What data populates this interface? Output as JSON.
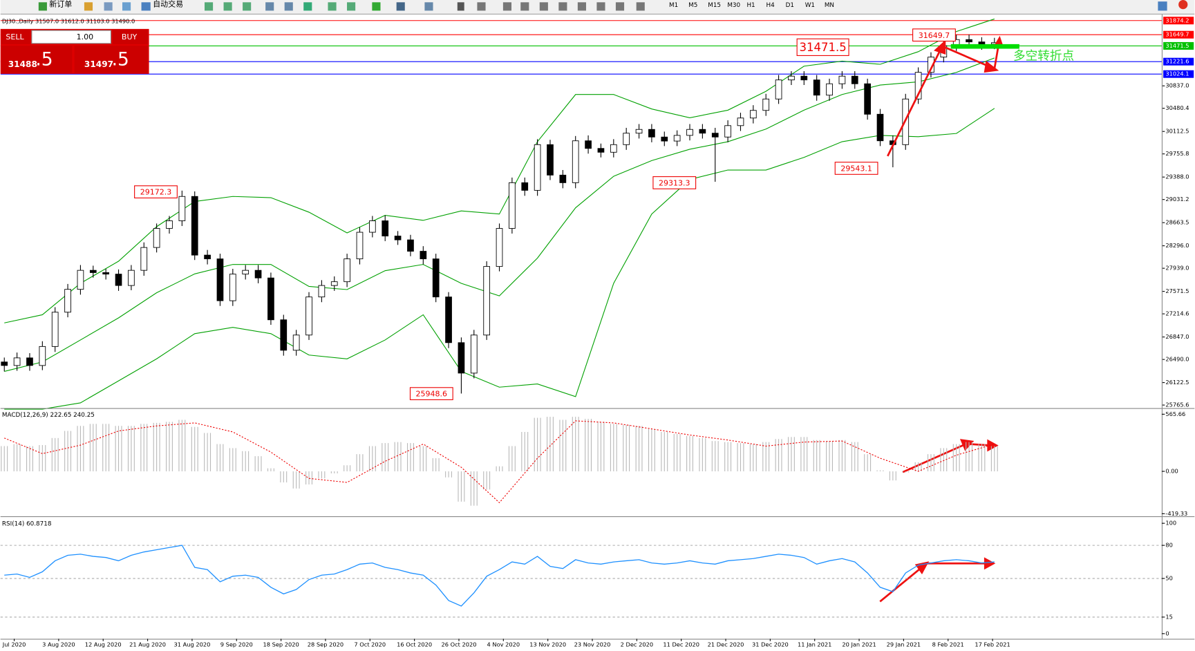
{
  "toolbar": {
    "new_order": "新订单",
    "auto_trading": "自动交易",
    "timeframes": [
      "M1",
      "M5",
      "M15",
      "M30",
      "H1",
      "H4",
      "D1",
      "W1",
      "MN"
    ]
  },
  "trade_panel": {
    "sell": "SELL",
    "buy": "BUY",
    "lots": "1.00",
    "sell_big": "31488",
    "sell_small": ".5",
    "buy_big": "31497",
    "buy_small": ".5"
  },
  "chart_data": {
    "type": "candlestick",
    "header": "DJ30.,Daily  31507.0 31612.0 31103.0 31490.0",
    "ohlc": [
      [
        26450,
        26520,
        26300,
        26394
      ],
      [
        26394,
        26600,
        26310,
        26515
      ],
      [
        26515,
        26590,
        26310,
        26394
      ],
      [
        26394,
        26780,
        26320,
        26696
      ],
      [
        26696,
        27320,
        26610,
        27241
      ],
      [
        27241,
        27690,
        27160,
        27604
      ],
      [
        27604,
        27990,
        27520,
        27906
      ],
      [
        27906,
        27980,
        27790,
        27870
      ],
      [
        27870,
        27930,
        27760,
        27846
      ],
      [
        27846,
        27920,
        27580,
        27665
      ],
      [
        27665,
        27990,
        27590,
        27906
      ],
      [
        27906,
        28350,
        27820,
        28269
      ],
      [
        28269,
        28650,
        28190,
        28572
      ],
      [
        28572,
        28770,
        28490,
        28693
      ],
      [
        28693,
        29172.3,
        28610,
        29080
      ],
      [
        29080,
        29160,
        28070,
        28148
      ],
      [
        28148,
        28230,
        28000,
        28088
      ],
      [
        28088,
        28170,
        27340,
        27423
      ],
      [
        27423,
        27930,
        27340,
        27846
      ],
      [
        27846,
        27990,
        27760,
        27906
      ],
      [
        27906,
        27990,
        27700,
        27785
      ],
      [
        27785,
        27870,
        27040,
        27120
      ],
      [
        27120,
        27200,
        26550,
        26636
      ],
      [
        26636,
        26960,
        26550,
        26878
      ],
      [
        26878,
        27560,
        26800,
        27483
      ],
      [
        27483,
        27750,
        27400,
        27665
      ],
      [
        27665,
        27810,
        27580,
        27725
      ],
      [
        27725,
        28170,
        27640,
        28088
      ],
      [
        28088,
        28590,
        28000,
        28511
      ],
      [
        28511,
        28770,
        28430,
        28693
      ],
      [
        28693,
        28780,
        28370,
        28451
      ],
      [
        28451,
        28530,
        28310,
        28390
      ],
      [
        28390,
        28470,
        28130,
        28209
      ],
      [
        28209,
        28290,
        28000,
        28088
      ],
      [
        28088,
        28170,
        27400,
        27483
      ],
      [
        27483,
        27560,
        26670,
        26757
      ],
      [
        26757,
        26840,
        25948.6,
        26273
      ],
      [
        26273,
        26960,
        26190,
        26878
      ],
      [
        26878,
        28050,
        26800,
        27967
      ],
      [
        27967,
        28650,
        27890,
        28572
      ],
      [
        28572,
        29380,
        28490,
        29298
      ],
      [
        29298,
        29380,
        29090,
        29177
      ],
      [
        29177,
        29990,
        29090,
        29903
      ],
      [
        29903,
        29980,
        29340,
        29419
      ],
      [
        29419,
        29500,
        29210,
        29298
      ],
      [
        29298,
        30040,
        29210,
        29964
      ],
      [
        29964,
        30050,
        29760,
        29843
      ],
      [
        29843,
        29920,
        29700,
        29782
      ],
      [
        29782,
        29990,
        29700,
        29903
      ],
      [
        29903,
        30170,
        29820,
        30085
      ],
      [
        30085,
        30230,
        30000,
        30145
      ],
      [
        30145,
        30230,
        29940,
        30024
      ],
      [
        30024,
        30110,
        29880,
        29960
      ],
      [
        29960,
        30130,
        29880,
        30050
      ],
      [
        30050,
        30230,
        29970,
        30145
      ],
      [
        30145,
        30230,
        30000,
        30085
      ],
      [
        30085,
        30170,
        29313.3,
        30024
      ],
      [
        30024,
        30290,
        29940,
        30205
      ],
      [
        30205,
        30410,
        30120,
        30326
      ],
      [
        30326,
        30530,
        30240,
        30447
      ],
      [
        30447,
        30710,
        30360,
        30628
      ],
      [
        30628,
        31010,
        30550,
        30931
      ],
      [
        30931,
        31070,
        30850,
        30991
      ],
      [
        30991,
        31070,
        30850,
        30931
      ],
      [
        30931,
        31010,
        30600,
        30689
      ],
      [
        30689,
        30950,
        30600,
        30870
      ],
      [
        30870,
        31070,
        30790,
        30991
      ],
      [
        30991,
        31070,
        30790,
        30870
      ],
      [
        30870,
        30950,
        30300,
        30386
      ],
      [
        30386,
        30470,
        29880,
        29964
      ],
      [
        29964,
        30050,
        29543.1,
        29903
      ],
      [
        29903,
        30710,
        29820,
        30628
      ],
      [
        30628,
        31130,
        30550,
        31052
      ],
      [
        31052,
        31370,
        30970,
        31294
      ],
      [
        31294,
        31560,
        31210,
        31475
      ],
      [
        31475,
        31649.7,
        31390,
        31572
      ],
      [
        31572,
        31650,
        31450,
        31535
      ],
      [
        31535,
        31610,
        31410,
        31499
      ],
      [
        31499,
        31600,
        31420,
        31523
      ]
    ],
    "ylim": [
      25729,
      31959
    ],
    "yticks": [
      {
        "value": 30837,
        "label": "30837.0"
      },
      30480.4,
      30112.5,
      29755.8,
      {
        "value": 29388,
        "label": "29388.0"
      },
      29031.2,
      28663.5,
      {
        "value": 28296,
        "label": "28296.0"
      },
      {
        "value": 27939,
        "label": "27939.0"
      },
      27571.5,
      27214.6,
      {
        "value": 26847,
        "label": "26847.0"
      },
      {
        "value": 26490,
        "label": "26490.0"
      },
      26122.5,
      25765.6
    ],
    "levels": [
      {
        "value": 31874.2,
        "color": "#ff0000"
      },
      {
        "value": 31649.7,
        "color": "#ff0000"
      },
      {
        "value": 31471.5,
        "color": "#00c000"
      },
      {
        "value": 31221.6,
        "color": "#0000ff"
      },
      {
        "value": 31024.1,
        "color": "#0000ff"
      }
    ],
    "bands": {
      "color": "#00a000",
      "index": [
        0,
        3,
        6,
        9,
        12,
        15,
        18,
        21,
        24,
        27,
        30,
        33,
        36,
        39,
        42,
        45,
        48,
        51,
        54,
        57,
        60,
        63,
        66,
        69,
        72,
        75,
        78
      ],
      "upper": [
        27070,
        27200,
        27700,
        28050,
        28600,
        29000,
        29080,
        29060,
        28830,
        28500,
        28780,
        28700,
        28850,
        28800,
        29950,
        30700,
        30700,
        30470,
        30330,
        30450,
        30750,
        31150,
        31230,
        31180,
        31380,
        31700,
        31900
      ],
      "middle": [
        26300,
        26450,
        26800,
        27150,
        27550,
        27850,
        28000,
        28000,
        27650,
        27600,
        27900,
        28000,
        27700,
        27500,
        28100,
        28900,
        29400,
        29650,
        29830,
        29950,
        30150,
        30450,
        30700,
        30850,
        30900,
        31050,
        31280
      ],
      "lower": [
        25700,
        25700,
        25800,
        26150,
        26500,
        26900,
        27000,
        26900,
        26560,
        26500,
        26800,
        27200,
        26300,
        26050,
        26100,
        25900,
        27700,
        28800,
        29350,
        29500,
        29500,
        29700,
        29950,
        30050,
        30030,
        30080,
        30480
      ]
    },
    "annotations": [
      {
        "value": 29172.3
      },
      {
        "value": 25948.6
      },
      {
        "value": 29313.3
      },
      {
        "value": 29543.1
      },
      {
        "value": 31649.7
      },
      {
        "value": 31471.5
      }
    ],
    "note": "多空转折点",
    "x_labels": [
      "Jul 2020",
      "3 Aug 2020",
      "12 Aug 2020",
      "21 Aug 2020",
      "31 Aug 2020",
      "9 Sep 2020",
      "18 Sep 2020",
      "28 Sep 2020",
      "7 Oct 2020",
      "16 Oct 2020",
      "26 Oct 2020",
      "4 Nov 2020",
      "13 Nov 2020",
      "23 Nov 2020",
      "2 Dec 2020",
      "11 Dec 2020",
      "21 Dec 2020",
      "31 Dec 2020",
      "11 Jan 2021",
      "20 Jan 2021",
      "29 Jan 2021",
      "8 Feb 2021",
      "17 Feb 2021"
    ],
    "macd": {
      "label": "MACD(12,26,9) 222.65 240.25",
      "values": [
        250,
        270,
        250,
        260,
        330,
        400,
        450,
        470,
        470,
        450,
        450,
        470,
        480,
        490,
        510,
        440,
        380,
        270,
        230,
        200,
        150,
        30,
        -110,
        -170,
        -130,
        -70,
        -20,
        60,
        170,
        250,
        280,
        290,
        280,
        250,
        130,
        -60,
        -300,
        -340,
        -180,
        50,
        250,
        390,
        530,
        540,
        510,
        540,
        520,
        490,
        470,
        460,
        450,
        420,
        390,
        370,
        350,
        330,
        300,
        290,
        280,
        270,
        290,
        320,
        340,
        340,
        310,
        300,
        310,
        290,
        170,
        10,
        -90,
        -10,
        90,
        170,
        230,
        270,
        290,
        270,
        250
      ],
      "signal": [
        330,
        175,
        260,
        400,
        450,
        480,
        390,
        190,
        -70,
        -110,
        100,
        270,
        40,
        -310,
        130,
        500,
        480,
        420,
        360,
        310,
        250,
        290,
        300,
        130,
        0,
        160,
        270
      ],
      "ylim": [
        -437,
        611
      ],
      "yticks": [
        565.66,
        {
          "value": 0,
          "label": "0.00"
        },
        -419.33
      ]
    },
    "rsi": {
      "label": "RSI(14) 60.8718",
      "color": "#1e90ff",
      "values": [
        53,
        54,
        51,
        56,
        66,
        71,
        72,
        70,
        69,
        66,
        71,
        74,
        76,
        78,
        80,
        60,
        58,
        47,
        52,
        53,
        51,
        42,
        36,
        40,
        49,
        53,
        54,
        58,
        63,
        64,
        60,
        58,
        55,
        53,
        44,
        30,
        25,
        37,
        52,
        58,
        65,
        63,
        70,
        61,
        59,
        67,
        64,
        63,
        65,
        66,
        67,
        64,
        63,
        64,
        66,
        64,
        63,
        66,
        67,
        68,
        70,
        72,
        71,
        69,
        63,
        66,
        68,
        65,
        55,
        42,
        38,
        55,
        62,
        64,
        66,
        67,
        66,
        64,
        65
      ],
      "ylim": [
        -4,
        105
      ],
      "yticks": [
        100,
        80,
        50,
        15,
        0
      ]
    }
  }
}
